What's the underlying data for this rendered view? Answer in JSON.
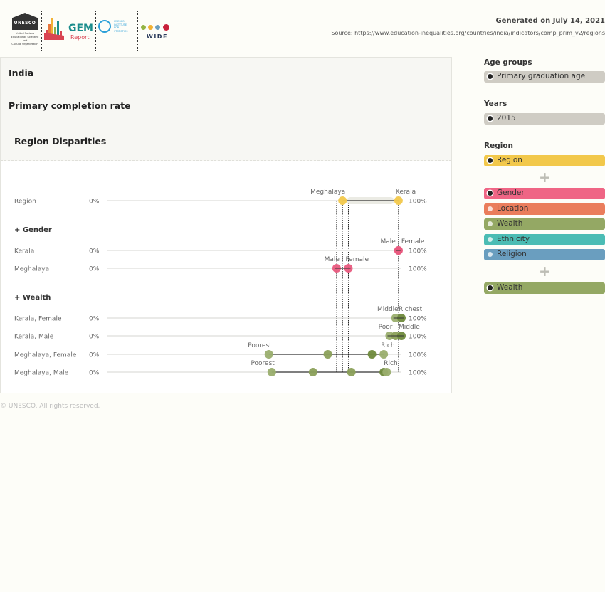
{
  "header": {
    "generated": "Generated on July 14, 2021",
    "source": "Source: https://www.education-inequalities.org/countries/india/indicators/comp_prim_v2/regions",
    "unesco_text": "UNESCO",
    "unesco_caption": [
      "United Nations",
      "Educational, Scientific and",
      "Cultural Organization"
    ],
    "gem_text": "GEM",
    "gem_report": "Report",
    "uis_caption": [
      "UNESCO",
      "INSTITUTE",
      "FOR",
      "STATISTICS"
    ],
    "wide_text": "WIDE"
  },
  "panel": {
    "country": "India",
    "indicator": "Primary completion rate",
    "view": "Region Disparities"
  },
  "chart_data": {
    "type": "dot-range",
    "axis_min_label": "0%",
    "axis_max_label": "100%",
    "xlim": [
      0,
      100
    ],
    "rows": [
      {
        "label": "Region",
        "group": null,
        "min": 80,
        "max": 99,
        "points": [
          {
            "value": 80,
            "label": "Meghalaya",
            "color": "#f2c84b"
          },
          {
            "value": 99,
            "label": "Kerala",
            "color": "#f2c84b"
          }
        ]
      },
      {
        "label": "Kerala",
        "group": "+ Gender",
        "min": 99,
        "max": 99,
        "points": [
          {
            "value": 99,
            "label": "Male",
            "color": "#e85a7e"
          },
          {
            "value": 99,
            "label": "Female",
            "color": "#e85a7e"
          }
        ]
      },
      {
        "label": "Meghalaya",
        "group": null,
        "min": 78,
        "max": 82,
        "points": [
          {
            "value": 78,
            "label": "Male",
            "color": "#e85a7e"
          },
          {
            "value": 82,
            "label": "Female",
            "color": "#e85a7e"
          }
        ]
      },
      {
        "label": "Kerala, Female",
        "group": "+ Wealth",
        "min": 98,
        "max": 100,
        "points": [
          {
            "value": 98,
            "label": "Middle",
            "color": "#9aae6e"
          },
          {
            "value": 100,
            "label": "Richest",
            "color": "#6f8a3c"
          }
        ]
      },
      {
        "label": "Kerala, Male",
        "group": null,
        "min": 96,
        "max": 100,
        "points": [
          {
            "value": 96,
            "label": "Poor",
            "color": "#9aae6e"
          },
          {
            "value": 98,
            "label": "",
            "color": "#8ba05a"
          },
          {
            "value": 100,
            "label": "Middle",
            "color": "#6f8a3c"
          }
        ]
      },
      {
        "label": "Meghalaya, Female",
        "group": null,
        "min": 55,
        "max": 94,
        "points": [
          {
            "value": 55,
            "label": "Poorest",
            "color": "#9aae6e"
          },
          {
            "value": 75,
            "label": "",
            "color": "#8ba05a"
          },
          {
            "value": 90,
            "label": "",
            "color": "#6f8a3c"
          },
          {
            "value": 94,
            "label": "Rich",
            "color": "#9aae6e"
          }
        ]
      },
      {
        "label": "Meghalaya, Male",
        "group": null,
        "min": 56,
        "max": 95,
        "points": [
          {
            "value": 56,
            "label": "Poorest",
            "color": "#9aae6e"
          },
          {
            "value": 70,
            "label": "",
            "color": "#8ba05a"
          },
          {
            "value": 83,
            "label": "",
            "color": "#8ba05a"
          },
          {
            "value": 94,
            "label": "",
            "color": "#6f8a3c"
          },
          {
            "value": 95,
            "label": "Rich",
            "color": "#9aae6e"
          }
        ]
      }
    ],
    "connectors": [
      80,
      82,
      78,
      99
    ]
  },
  "footer": {
    "copyright": "© UNESCO. All rights reserved."
  },
  "sidebar": {
    "age_groups": {
      "title": "Age groups",
      "selected": "Primary graduation age"
    },
    "years": {
      "title": "Years",
      "selected": "2015"
    },
    "region": {
      "title": "Region",
      "primary": {
        "label": "Region",
        "color": "#f2c84b"
      },
      "plus": "+",
      "options": [
        {
          "label": "Gender",
          "color": "#ef6585",
          "selected": true
        },
        {
          "label": "Location",
          "color": "#ea7d5c",
          "selected": false
        },
        {
          "label": "Wealth",
          "color": "#94a864",
          "selected": false
        },
        {
          "label": "Ethnicity",
          "color": "#4bbcb4",
          "selected": false
        },
        {
          "label": "Religion",
          "color": "#6a9ebf",
          "selected": false
        }
      ],
      "secondary": {
        "label": "Wealth",
        "color": "#94a864"
      }
    }
  },
  "colors": {
    "chip_gray": "#cfccc4"
  }
}
